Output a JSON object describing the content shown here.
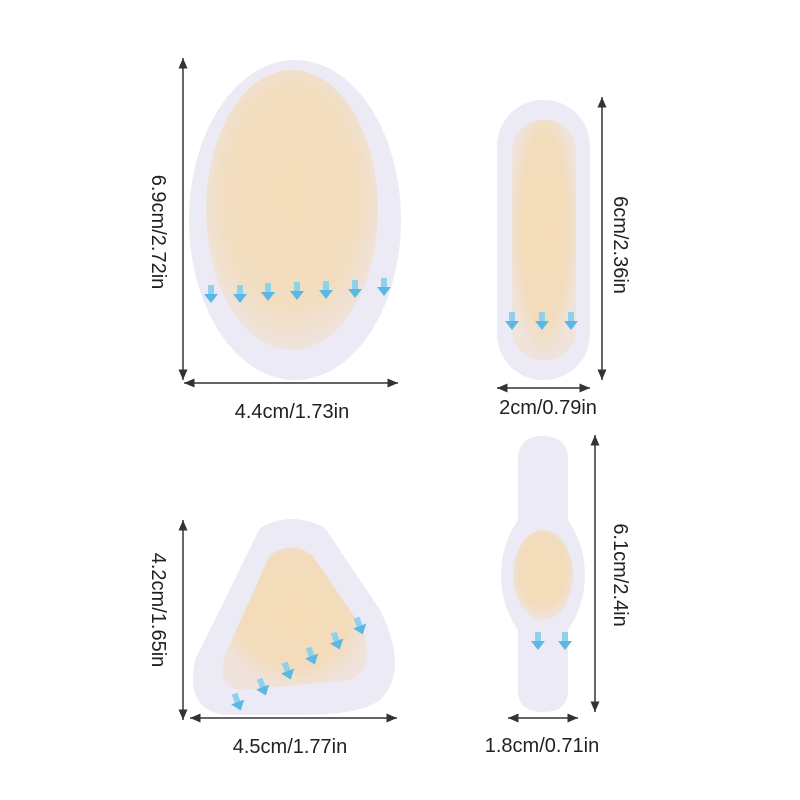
{
  "products": [
    {
      "shape": "oval",
      "height_label": "6.9cm/2.72in",
      "width_label": "4.4cm/1.73in"
    },
    {
      "shape": "rounded-rectangle",
      "height_label": "6cm/2.36in",
      "width_label": "2cm/0.79in"
    },
    {
      "shape": "rounded-triangle",
      "height_label": "4.2cm/1.65in",
      "width_label": "4.5cm/1.77in"
    },
    {
      "shape": "dog-bone",
      "height_label": "6.1cm/2.4in",
      "width_label": "1.8cm/0.71in"
    }
  ],
  "colors": {
    "patch_border": "#ecebf5",
    "patch_gel": "#f3dcb8",
    "arrow": "#6cc4e8",
    "dimension_line": "#333333"
  }
}
